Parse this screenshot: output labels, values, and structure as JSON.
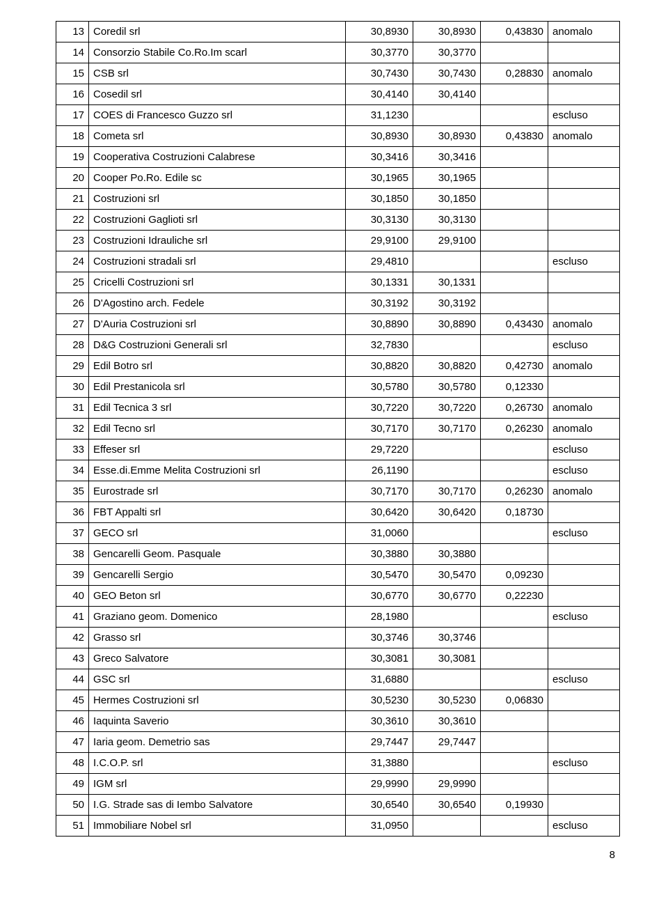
{
  "table": {
    "rows": [
      {
        "idx": "13",
        "name": "Coredil srl",
        "v1": "30,8930",
        "v2": "30,8930",
        "v3": "0,43830",
        "note": "anomalo"
      },
      {
        "idx": "14",
        "name": "Consorzio Stabile Co.Ro.Im scarl",
        "v1": "30,3770",
        "v2": "30,3770",
        "v3": "",
        "note": ""
      },
      {
        "idx": "15",
        "name": "CSB srl",
        "v1": "30,7430",
        "v2": "30,7430",
        "v3": "0,28830",
        "note": "anomalo"
      },
      {
        "idx": "16",
        "name": "Cosedil srl",
        "v1": "30,4140",
        "v2": "30,4140",
        "v3": "",
        "note": ""
      },
      {
        "idx": "17",
        "name": "COES di Francesco Guzzo srl",
        "v1": "31,1230",
        "v2": "",
        "v3": "",
        "note": "escluso"
      },
      {
        "idx": "18",
        "name": "Cometa srl",
        "v1": "30,8930",
        "v2": "30,8930",
        "v3": "0,43830",
        "note": "anomalo"
      },
      {
        "idx": "19",
        "name": "Cooperativa Costruzioni Calabrese",
        "v1": "30,3416",
        "v2": "30,3416",
        "v3": "",
        "note": ""
      },
      {
        "idx": "20",
        "name": "Cooper Po.Ro. Edile sc",
        "v1": "30,1965",
        "v2": "30,1965",
        "v3": "",
        "note": ""
      },
      {
        "idx": "21",
        "name": "Costruzioni srl",
        "v1": "30,1850",
        "v2": "30,1850",
        "v3": "",
        "note": ""
      },
      {
        "idx": "22",
        "name": "Costruzioni Gaglioti srl",
        "v1": "30,3130",
        "v2": "30,3130",
        "v3": "",
        "note": ""
      },
      {
        "idx": "23",
        "name": "Costruzioni Idrauliche srl",
        "v1": "29,9100",
        "v2": "29,9100",
        "v3": "",
        "note": ""
      },
      {
        "idx": "24",
        "name": "Costruzioni stradali srl",
        "v1": "29,4810",
        "v2": "",
        "v3": "",
        "note": "escluso"
      },
      {
        "idx": "25",
        "name": "Cricelli Costruzioni srl",
        "v1": "30,1331",
        "v2": "30,1331",
        "v3": "",
        "note": ""
      },
      {
        "idx": "26",
        "name": "D'Agostino arch. Fedele",
        "v1": "30,3192",
        "v2": "30,3192",
        "v3": "",
        "note": ""
      },
      {
        "idx": "27",
        "name": "D'Auria Costruzioni srl",
        "v1": "30,8890",
        "v2": "30,8890",
        "v3": "0,43430",
        "note": "anomalo"
      },
      {
        "idx": "28",
        "name": "D&G Costruzioni Generali srl",
        "v1": "32,7830",
        "v2": "",
        "v3": "",
        "note": "escluso"
      },
      {
        "idx": "29",
        "name": "Edil Botro srl",
        "v1": "30,8820",
        "v2": "30,8820",
        "v3": "0,42730",
        "note": "anomalo"
      },
      {
        "idx": "30",
        "name": "Edil Prestanicola srl",
        "v1": "30,5780",
        "v2": "30,5780",
        "v3": "0,12330",
        "note": ""
      },
      {
        "idx": "31",
        "name": "Edil Tecnica 3 srl",
        "v1": "30,7220",
        "v2": "30,7220",
        "v3": "0,26730",
        "note": "anomalo"
      },
      {
        "idx": "32",
        "name": "Edil Tecno srl",
        "v1": "30,7170",
        "v2": "30,7170",
        "v3": "0,26230",
        "note": "anomalo"
      },
      {
        "idx": "33",
        "name": "Effeser srl",
        "v1": "29,7220",
        "v2": "",
        "v3": "",
        "note": "escluso"
      },
      {
        "idx": "34",
        "name": "Esse.di.Emme Melita Costruzioni srl",
        "v1": "26,1190",
        "v2": "",
        "v3": "",
        "note": "escluso"
      },
      {
        "idx": "35",
        "name": "Eurostrade srl",
        "v1": "30,7170",
        "v2": "30,7170",
        "v3": "0,26230",
        "note": "anomalo"
      },
      {
        "idx": "36",
        "name": "FBT Appalti srl",
        "v1": "30,6420",
        "v2": "30,6420",
        "v3": "0,18730",
        "note": ""
      },
      {
        "idx": "37",
        "name": "GECO srl",
        "v1": "31,0060",
        "v2": "",
        "v3": "",
        "note": "escluso"
      },
      {
        "idx": "38",
        "name": "Gencarelli Geom. Pasquale",
        "v1": "30,3880",
        "v2": "30,3880",
        "v3": "",
        "note": ""
      },
      {
        "idx": "39",
        "name": "Gencarelli Sergio",
        "v1": "30,5470",
        "v2": "30,5470",
        "v3": "0,09230",
        "note": ""
      },
      {
        "idx": "40",
        "name": "GEO Beton srl",
        "v1": "30,6770",
        "v2": "30,6770",
        "v3": "0,22230",
        "note": ""
      },
      {
        "idx": "41",
        "name": "Graziano geom. Domenico",
        "v1": "28,1980",
        "v2": "",
        "v3": "",
        "note": "escluso"
      },
      {
        "idx": "42",
        "name": "Grasso srl",
        "v1": "30,3746",
        "v2": "30,3746",
        "v3": "",
        "note": ""
      },
      {
        "idx": "43",
        "name": "Greco Salvatore",
        "v1": "30,3081",
        "v2": "30,3081",
        "v3": "",
        "note": ""
      },
      {
        "idx": "44",
        "name": "GSC srl",
        "v1": "31,6880",
        "v2": "",
        "v3": "",
        "note": "escluso"
      },
      {
        "idx": "45",
        "name": "Hermes Costruzioni srl",
        "v1": "30,5230",
        "v2": "30,5230",
        "v3": "0,06830",
        "note": ""
      },
      {
        "idx": "46",
        "name": "Iaquinta Saverio",
        "v1": "30,3610",
        "v2": "30,3610",
        "v3": "",
        "note": ""
      },
      {
        "idx": "47",
        "name": "Iaria geom. Demetrio sas",
        "v1": "29,7447",
        "v2": "29,7447",
        "v3": "",
        "note": ""
      },
      {
        "idx": "48",
        "name": "I.C.O.P. srl",
        "v1": "31,3880",
        "v2": "",
        "v3": "",
        "note": "escluso"
      },
      {
        "idx": "49",
        "name": "IGM srl",
        "v1": "29,9990",
        "v2": "29,9990",
        "v3": "",
        "note": ""
      },
      {
        "idx": "50",
        "name": "I.G. Strade sas di Iembo Salvatore",
        "v1": "30,6540",
        "v2": "30,6540",
        "v3": "0,19930",
        "note": ""
      },
      {
        "idx": "51",
        "name": "Immobiliare Nobel srl",
        "v1": "31,0950",
        "v2": "",
        "v3": "",
        "note": "escluso"
      }
    ]
  },
  "footer": {
    "page_number": "8"
  }
}
